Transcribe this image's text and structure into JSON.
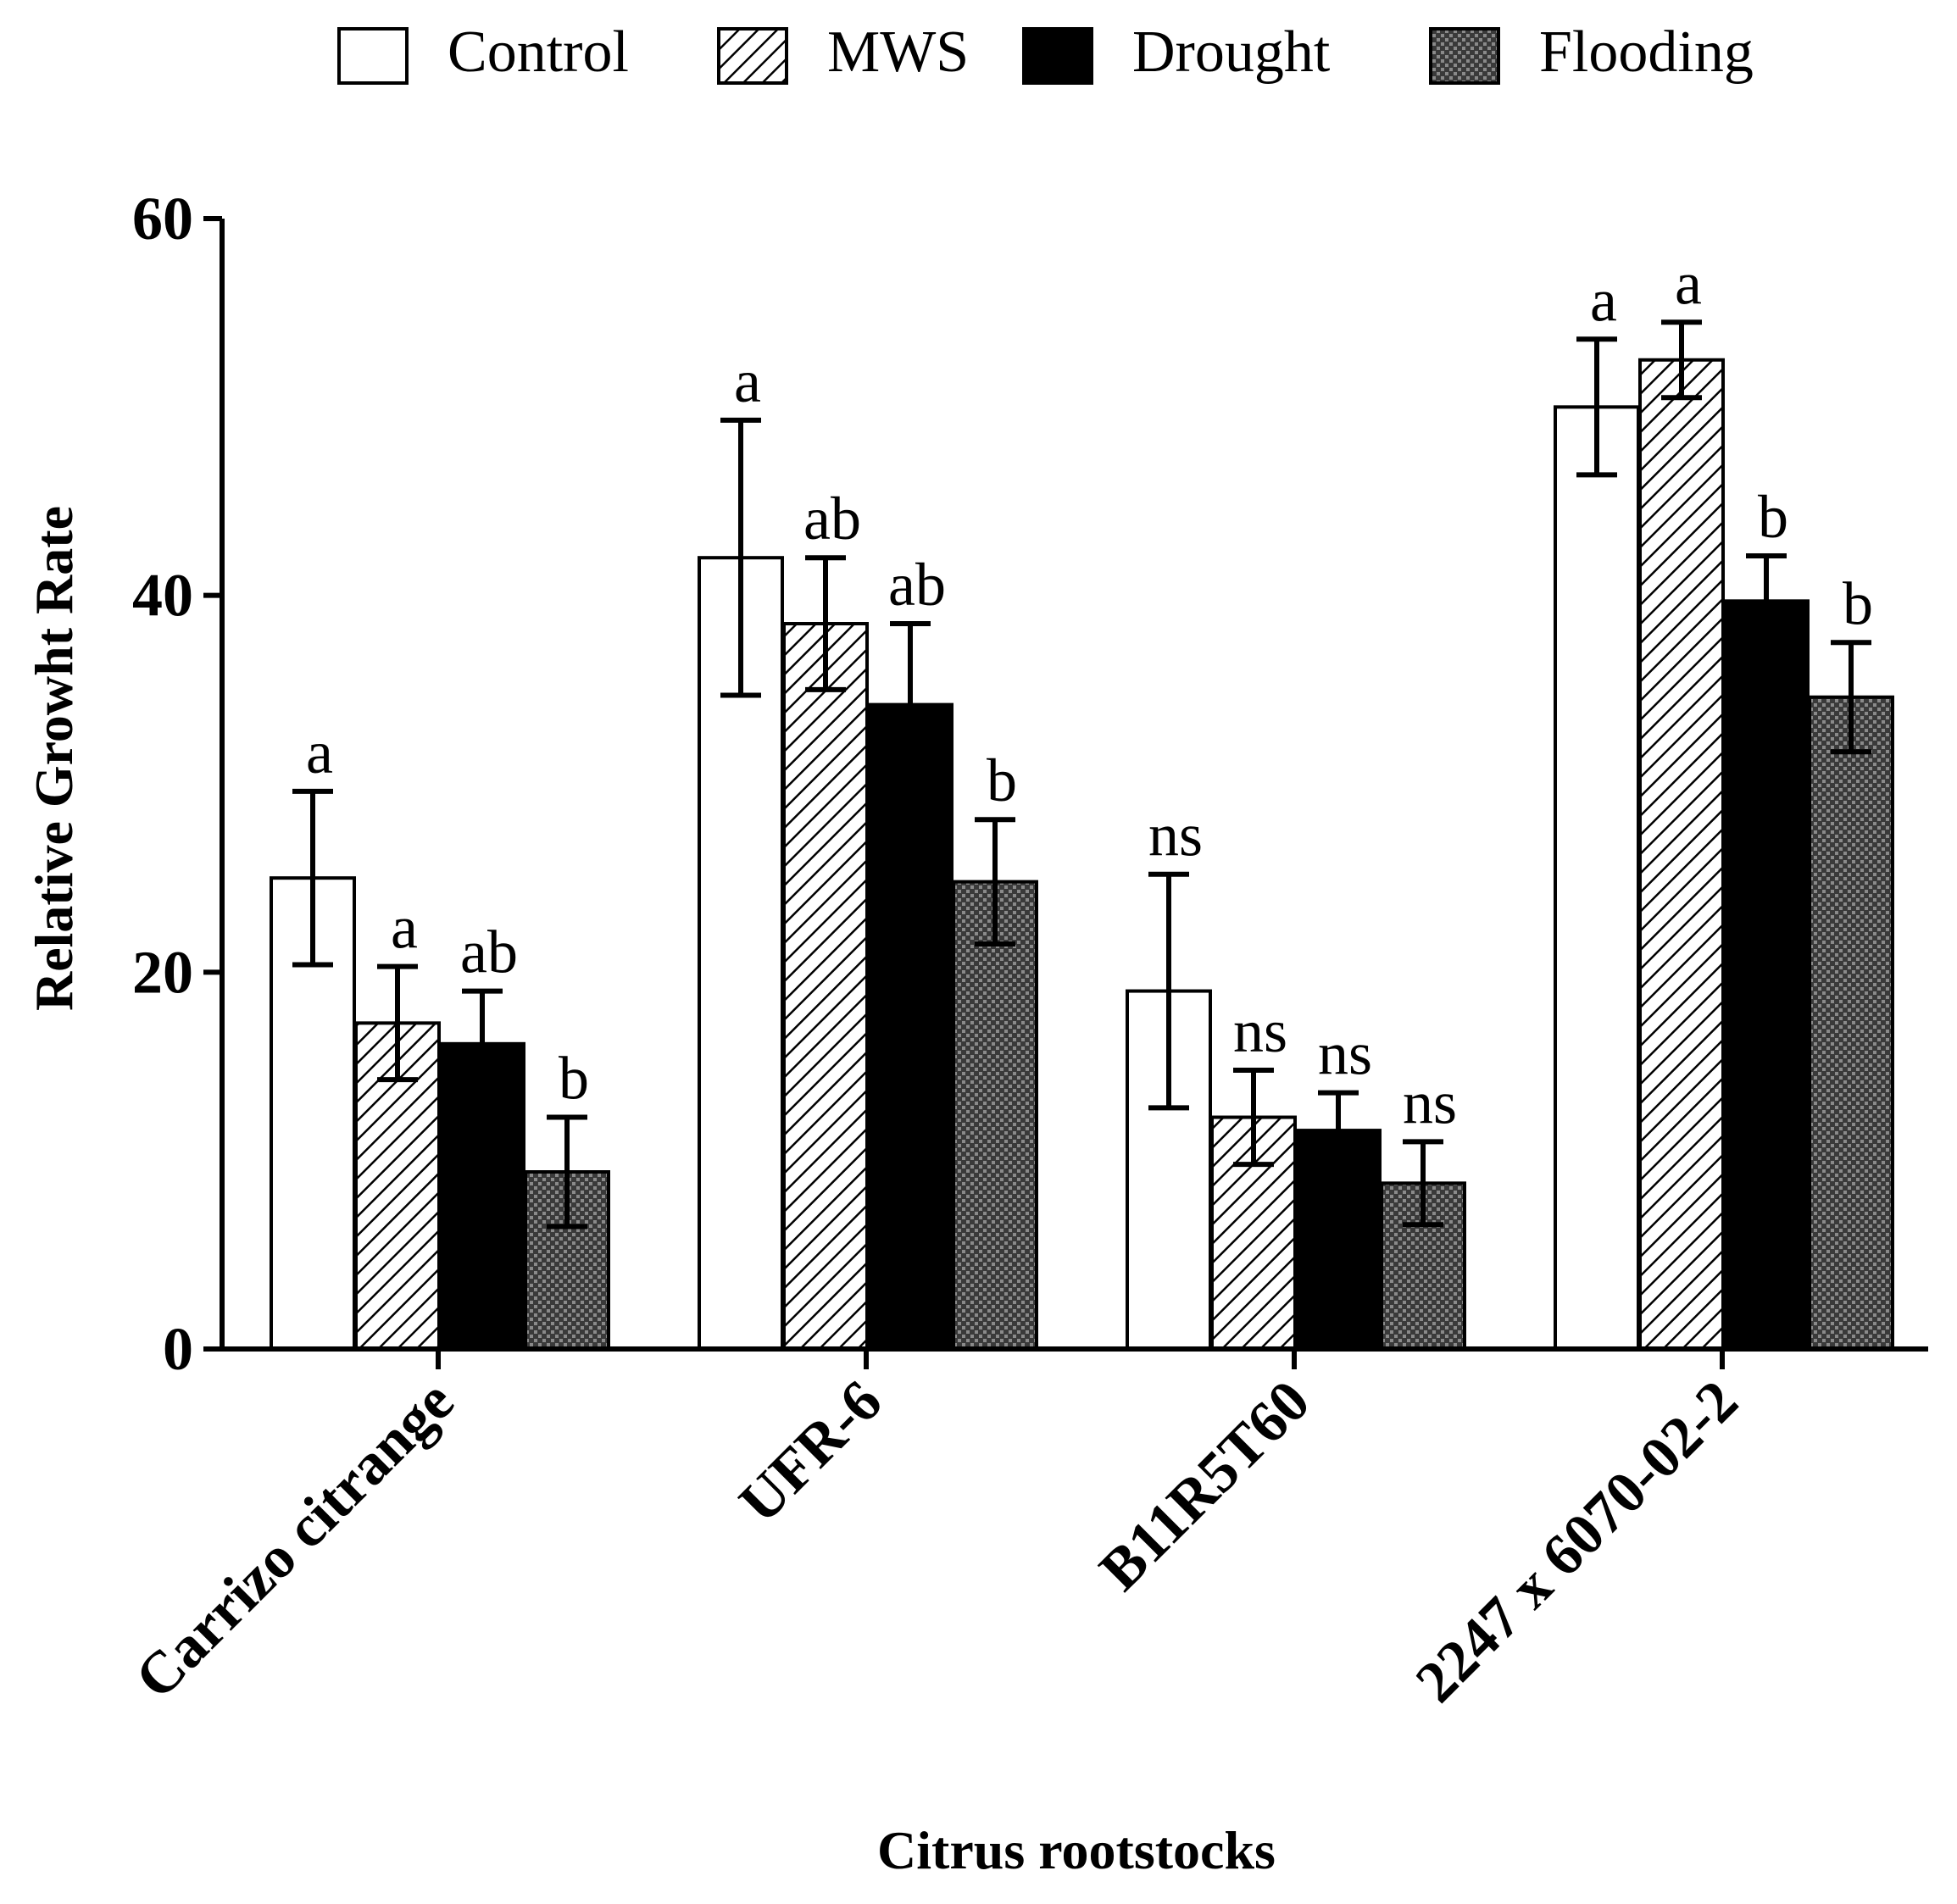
{
  "chart_data": {
    "type": "bar",
    "title": "",
    "xlabel": "Citrus rootstocks",
    "ylabel": "Relative Growht Rate",
    "ylim": [
      0,
      60
    ],
    "yticks": [
      0,
      20,
      40,
      60
    ],
    "categories": [
      "Carrizo citrange",
      "UFR-6",
      "B11R5T60",
      "2247 x 6070-02-2"
    ],
    "legend_position": "top",
    "series": [
      {
        "name": "Control",
        "fill": "white",
        "values": [
          25,
          42,
          19,
          50
        ],
        "errors": [
          4.6,
          7.3,
          6.2,
          3.6
        ],
        "labels": [
          "a",
          "a",
          "ns",
          "a"
        ]
      },
      {
        "name": "MWS",
        "fill": "diagonal-hatch",
        "values": [
          17.3,
          38.5,
          12.3,
          52.5
        ],
        "errors": [
          3,
          3.5,
          2.5,
          2
        ],
        "labels": [
          "a",
          "ab",
          "ns",
          "a"
        ]
      },
      {
        "name": "Drought",
        "fill": "black",
        "values": [
          16.2,
          34.2,
          11.6,
          39.7
        ],
        "errors": [
          2.8,
          4.3,
          2,
          2.4
        ],
        "labels": [
          "ab",
          "ab",
          "ns",
          "b"
        ]
      },
      {
        "name": "Flooding",
        "fill": "crosshatch-dark",
        "values": [
          9.4,
          24.8,
          8.8,
          34.6
        ],
        "errors": [
          2.9,
          3.3,
          2.2,
          2.9
        ],
        "labels": [
          "b",
          "b",
          "ns",
          "b"
        ]
      }
    ]
  },
  "colors": {
    "axis": "#000000",
    "bar_edge": "#000000",
    "control": "#ffffff",
    "drought": "#000000",
    "flooding_bg": "#4a4a4a"
  }
}
